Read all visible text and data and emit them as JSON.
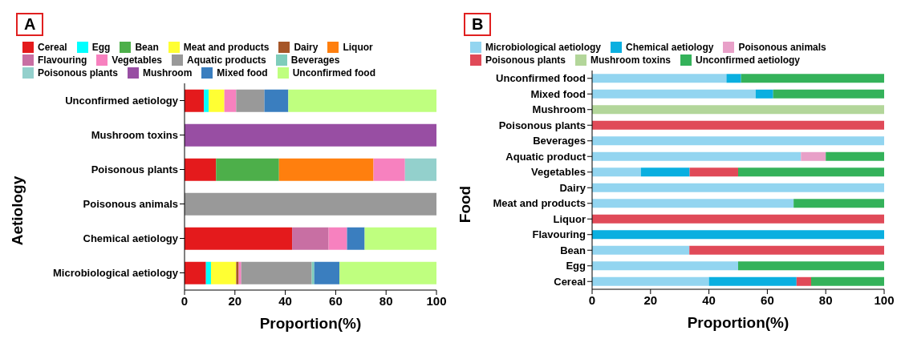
{
  "chart_data": [
    {
      "type": "bar",
      "orientation": "horizontal",
      "stacked": true,
      "annotations": [
        "A"
      ],
      "xlabel": "Proportion(%)",
      "ylabel": "Aetiology",
      "legend": "top",
      "xlim": [
        0,
        100
      ],
      "xticks": [
        0,
        20,
        40,
        60,
        80,
        100
      ],
      "categories": [
        "Unconfirmed aetiology",
        "Mushroom toxins",
        "Poisonous plants",
        "Poisonous animals",
        "Chemical  aetiology",
        "Microbiological aetiology"
      ],
      "series": [
        {
          "name": "Cereal",
          "color": "#e41a1c",
          "values": [
            7.7,
            null,
            12.5,
            null,
            42.7,
            8.5
          ]
        },
        {
          "name": "Egg",
          "color": "#00ffff",
          "values": [
            1.9,
            null,
            null,
            null,
            null,
            2
          ]
        },
        {
          "name": "Bean",
          "color": "#4daf4a",
          "values": [
            null,
            null,
            25,
            null,
            null,
            null
          ]
        },
        {
          "name": "Meat and products",
          "color": "#ffff33",
          "values": [
            6.2,
            null,
            null,
            null,
            null,
            10
          ]
        },
        {
          "name": "Dairy",
          "color": "#a65628",
          "values": [
            null,
            null,
            null,
            null,
            null,
            1
          ]
        },
        {
          "name": "Liquor",
          "color": "#ff7f0e",
          "values": [
            null,
            null,
            37.5,
            null,
            null,
            null
          ]
        },
        {
          "name": "Flavouring",
          "color": "#c86fa3",
          "values": [
            null,
            null,
            null,
            null,
            14.5,
            null
          ]
        },
        {
          "name": "Vegetables",
          "color": "#f781bf",
          "values": [
            4.7,
            null,
            12.5,
            null,
            7.3,
            1
          ]
        },
        {
          "name": "Aquatic products",
          "color": "#999999",
          "values": [
            11.2,
            null,
            null,
            100,
            null,
            28
          ]
        },
        {
          "name": "Beverages",
          "color": "#7fcdbb",
          "values": [
            null,
            null,
            null,
            null,
            null,
            1
          ]
        },
        {
          "name": "Poisonous plants",
          "color": "#93d0cc",
          "values": [
            null,
            null,
            12.5,
            null,
            null,
            null
          ]
        },
        {
          "name": "Mushroom",
          "color": "#984ea3",
          "values": [
            null,
            100,
            null,
            null,
            null,
            null
          ]
        },
        {
          "name": "Mixed food",
          "color": "#3a7ebf",
          "values": [
            9.5,
            null,
            null,
            null,
            7,
            10
          ]
        },
        {
          "name": "Unconfirmed food",
          "color": "#bfff7f",
          "values": [
            58.8,
            null,
            null,
            null,
            28.5,
            38.5
          ]
        }
      ]
    },
    {
      "type": "bar",
      "orientation": "horizontal",
      "stacked": true,
      "annotations": [
        "B"
      ],
      "xlabel": "Proportion(%)",
      "ylabel": "Food",
      "legend": "top",
      "xlim": [
        0,
        100
      ],
      "xticks": [
        0,
        20,
        40,
        60,
        80,
        100
      ],
      "categories": [
        "Unconfirmed food",
        "Mixed food",
        "Mushroom",
        "Poisonous plants",
        "Beverages",
        "Aquatic product",
        "Vegetables",
        "Dairy",
        "Meat and products",
        "Liquor",
        "Flavouring",
        "Bean",
        "Egg",
        "Cereal"
      ],
      "series": [
        {
          "name": "Microbiological aetiology",
          "color": "#93d5f0",
          "values": [
            46,
            56,
            null,
            null,
            100,
            71.5,
            16.7,
            100,
            69,
            null,
            null,
            33.3,
            50,
            40
          ]
        },
        {
          "name": "Chemical aetiology",
          "color": "#0aafe0",
          "values": [
            5,
            6,
            null,
            null,
            null,
            null,
            16.7,
            null,
            null,
            null,
            100,
            null,
            null,
            30
          ]
        },
        {
          "name": "Poisonous animals",
          "color": "#e8a0c8",
          "values": [
            null,
            null,
            null,
            null,
            null,
            8.5,
            null,
            null,
            null,
            null,
            null,
            null,
            null,
            null
          ]
        },
        {
          "name": "Poisonous plants",
          "color": "#e04a58",
          "values": [
            null,
            null,
            null,
            100,
            null,
            null,
            16.6,
            null,
            null,
            100,
            null,
            66.7,
            null,
            5
          ]
        },
        {
          "name": "Mushroom toxins",
          "color": "#b3d69a",
          "values": [
            null,
            null,
            100,
            null,
            null,
            null,
            null,
            null,
            null,
            null,
            null,
            null,
            null,
            null
          ]
        },
        {
          "name": "Unconfirmed aetiology",
          "color": "#34b25a",
          "values": [
            49,
            38,
            null,
            null,
            null,
            20,
            50,
            null,
            31,
            null,
            null,
            null,
            50,
            25
          ]
        }
      ]
    }
  ]
}
